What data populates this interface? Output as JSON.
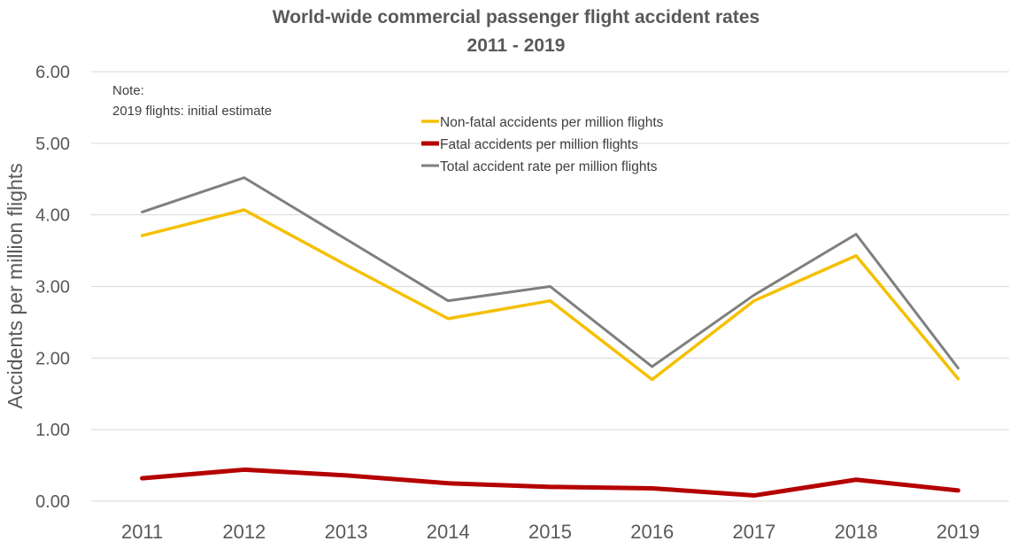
{
  "chart_data": {
    "type": "line",
    "title": "World-wide commercial passenger flight accident rates",
    "subtitle": "2011 - 2019",
    "xlabel": "",
    "ylabel": "Accidents per million flights",
    "categories": [
      "2011",
      "2012",
      "2013",
      "2014",
      "2015",
      "2016",
      "2017",
      "2018",
      "2019"
    ],
    "ylim": [
      0,
      6
    ],
    "yticks": [
      "0.00",
      "1.00",
      "2.00",
      "3.00",
      "4.00",
      "5.00",
      "6.00"
    ],
    "grid": true,
    "legend_position": "top-center",
    "note": [
      "Note:",
      "2019 flights: initial estimate"
    ],
    "series": [
      {
        "name": "Non-fatal accidents per million flights",
        "color": "#f5c000",
        "values": [
          3.71,
          4.07,
          3.3,
          2.55,
          2.8,
          1.7,
          2.8,
          3.43,
          1.71
        ]
      },
      {
        "name": "Fatal accidents per million flights",
        "color": "#b50000",
        "values": [
          0.32,
          0.44,
          0.36,
          0.25,
          0.2,
          0.18,
          0.08,
          0.3,
          0.15
        ]
      },
      {
        "name": "Total accident rate per million flights",
        "color": "#7f7f7f",
        "values": [
          4.04,
          4.52,
          3.66,
          2.8,
          3.0,
          1.88,
          2.88,
          3.73,
          1.86
        ]
      }
    ]
  }
}
